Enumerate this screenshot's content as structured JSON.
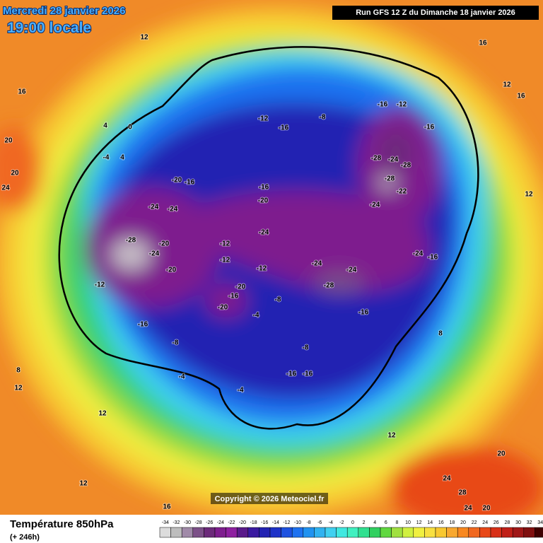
{
  "header": {
    "date": "Mercredi 28 janvier 2026",
    "time": "19:00 locale",
    "run": "Run GFS 12 Z du Dimanche 18 janvier 2026"
  },
  "copyright": "Copyright © 2026 Meteociel.fr",
  "footer": {
    "title": "Température 850hPa",
    "lead": "(+ 246h)"
  },
  "scale": {
    "values": [
      -34,
      -32,
      -30,
      -28,
      -26,
      -24,
      -22,
      -20,
      -18,
      -16,
      -14,
      -12,
      -10,
      -8,
      -6,
      -4,
      -2,
      0,
      2,
      4,
      6,
      8,
      10,
      12,
      14,
      16,
      18,
      20,
      22,
      24,
      26,
      28,
      30,
      32,
      34
    ],
    "colors": [
      "#dcdcdc",
      "#bdbdbd",
      "#a08aa8",
      "#7c5088",
      "#6c2a7a",
      "#7e1e8e",
      "#8e20a0",
      "#5a1a8a",
      "#3a1aa0",
      "#2222b2",
      "#1e32c8",
      "#1e52e0",
      "#1e72f0",
      "#2092f0",
      "#30b2f0",
      "#40d0f0",
      "#40e8e0",
      "#40f0c0",
      "#30e090",
      "#30d060",
      "#60d840",
      "#a0e040",
      "#d0f040",
      "#f0f040",
      "#f8e040",
      "#f8c830",
      "#f8a830",
      "#f88820",
      "#f06820",
      "#e84818",
      "#d83018",
      "#c02018",
      "#a01818",
      "#801010",
      "#400000"
    ]
  },
  "map_labels": [
    -12,
    -16,
    -8,
    -16,
    -12,
    -16,
    -28,
    -24,
    -28,
    -28,
    -22,
    -24,
    -20,
    -16,
    -24,
    -24,
    -28,
    -20,
    -24,
    -20,
    -24,
    -16,
    -20,
    -12,
    -12,
    -12,
    -24,
    -24,
    -28,
    -24,
    -16,
    -16,
    -12,
    -16,
    -8,
    -8,
    -16,
    -16,
    -20,
    -16,
    -20,
    -4,
    -8,
    -4,
    -4,
    0,
    4,
    12,
    16,
    12,
    16,
    20,
    20,
    24,
    12,
    12,
    16,
    20,
    24,
    28,
    24,
    20,
    12,
    8,
    12,
    16,
    12,
    8,
    4,
    -4
  ]
}
